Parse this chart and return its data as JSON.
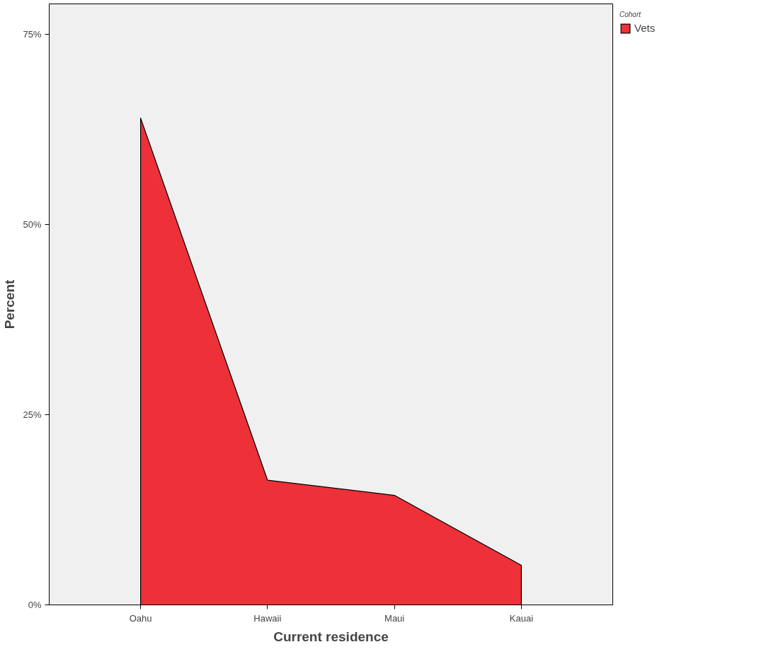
{
  "chart_data": {
    "type": "area",
    "xlabel": "Current residence",
    "ylabel": "Percent",
    "legend_title": "Cohort",
    "legend": "top right",
    "grid": false,
    "categories": [
      "Oahu",
      "Hawaii",
      "Maui",
      "Kauai"
    ],
    "series": [
      {
        "name": "Vets",
        "color": "#ee3038",
        "values": [
          64,
          16.4,
          14.4,
          5.2
        ]
      }
    ],
    "ylim": [
      0,
      79
    ],
    "yticks": [
      {
        "value": 0,
        "label": "0%"
      },
      {
        "value": 25,
        "label": "25%"
      },
      {
        "value": 50,
        "label": "50%"
      },
      {
        "value": 75,
        "label": "75%"
      }
    ]
  }
}
